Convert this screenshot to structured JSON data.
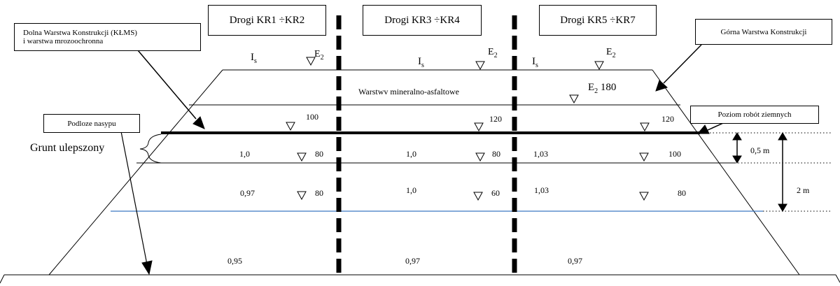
{
  "headers": {
    "kr1": "Drogi KR1 ÷KR2",
    "kr3": "Drogi KR3 ÷KR4",
    "kr5": "Drogi KR5 ÷KR7"
  },
  "callouts": {
    "lower_layer_line1": "Dolna Warstwa Konstrukcji (KŁMS)",
    "lower_layer_line2": "i warstwa mrozoochronna",
    "upper_layer": "Górna Warstwa Konstrukcji",
    "subgrade": "Podloze nasypu",
    "earthworks_level": "Poziom robót ziemnych"
  },
  "labels": {
    "improved_soil": "Grunt ulepszony",
    "asphalt_layers": "Warstwv mineralno-asfaltowe",
    "is_main": "I",
    "is_sub": "s",
    "e2_main": "E",
    "e2_sub": "2",
    "e2_180_value": "180",
    "dim_05": "0,5 m",
    "dim_2": "2 m"
  },
  "values": {
    "col1": {
      "top_e2": "100",
      "r1_is": "1,0",
      "r1_e2": "80",
      "r2_is": "0,97",
      "r2_e2": "80",
      "bottom_is": "0,95"
    },
    "col2": {
      "top_e2": "120",
      "r1_is": "1,0",
      "r1_e2": "80",
      "r2_is": "1,0",
      "r2_e2": "60",
      "bottom_is": "0,97"
    },
    "col3": {
      "top_e2": "120",
      "r1_is": "1,03",
      "r1_e2": "100",
      "r2_is": "1,03",
      "r2_e2": "80",
      "bottom_is": "0,97"
    }
  }
}
